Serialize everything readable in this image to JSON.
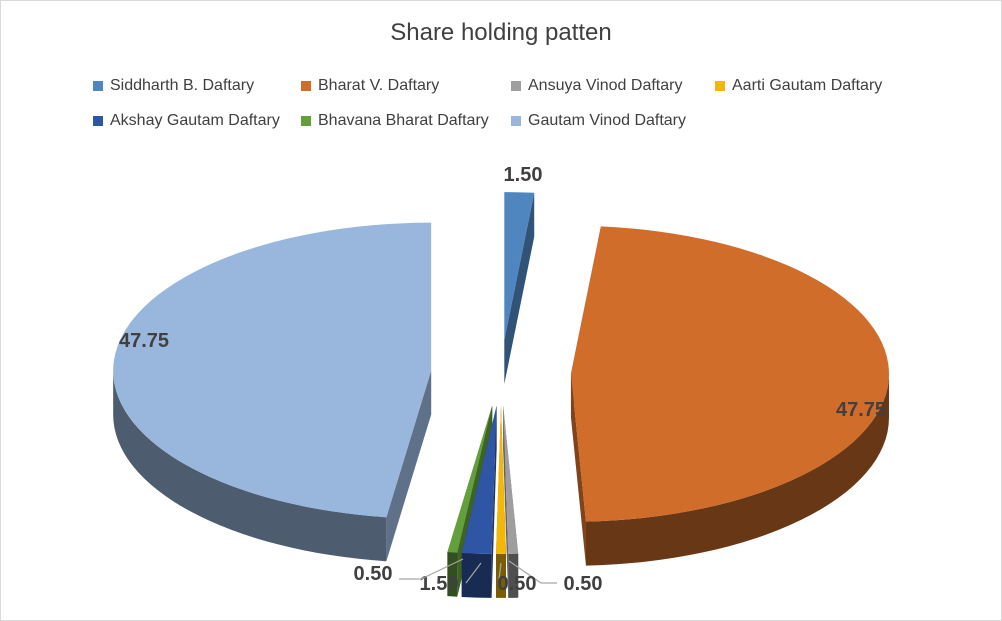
{
  "chart_data": {
    "type": "pie",
    "title": "Share holding patten",
    "legend_position": "top",
    "slices": [
      {
        "name": "Siddharth B. Daftary",
        "value": 1.5,
        "label": "1.50",
        "color": "#4f86c0"
      },
      {
        "name": "Bharat V. Daftary",
        "value": 47.75,
        "label": "47.75",
        "color": "#d06d2a"
      },
      {
        "name": "Ansuya Vinod Daftary",
        "value": 0.5,
        "label": "0.50",
        "color": "#9e9e9e"
      },
      {
        "name": "Aarti Gautam Daftary",
        "value": 0.5,
        "label": "0.50",
        "color": "#f2b707"
      },
      {
        "name": "Akshay Gautam Daftary",
        "value": 1.5,
        "label": "1.50",
        "color": "#2f56a4"
      },
      {
        "name": "Bhavana Bharat Daftary",
        "value": 0.5,
        "label": "0.50",
        "color": "#63a03c"
      },
      {
        "name": "Gautam Vinod Daftary",
        "value": 47.75,
        "label": "47.75",
        "color": "#99b7dd"
      }
    ]
  }
}
